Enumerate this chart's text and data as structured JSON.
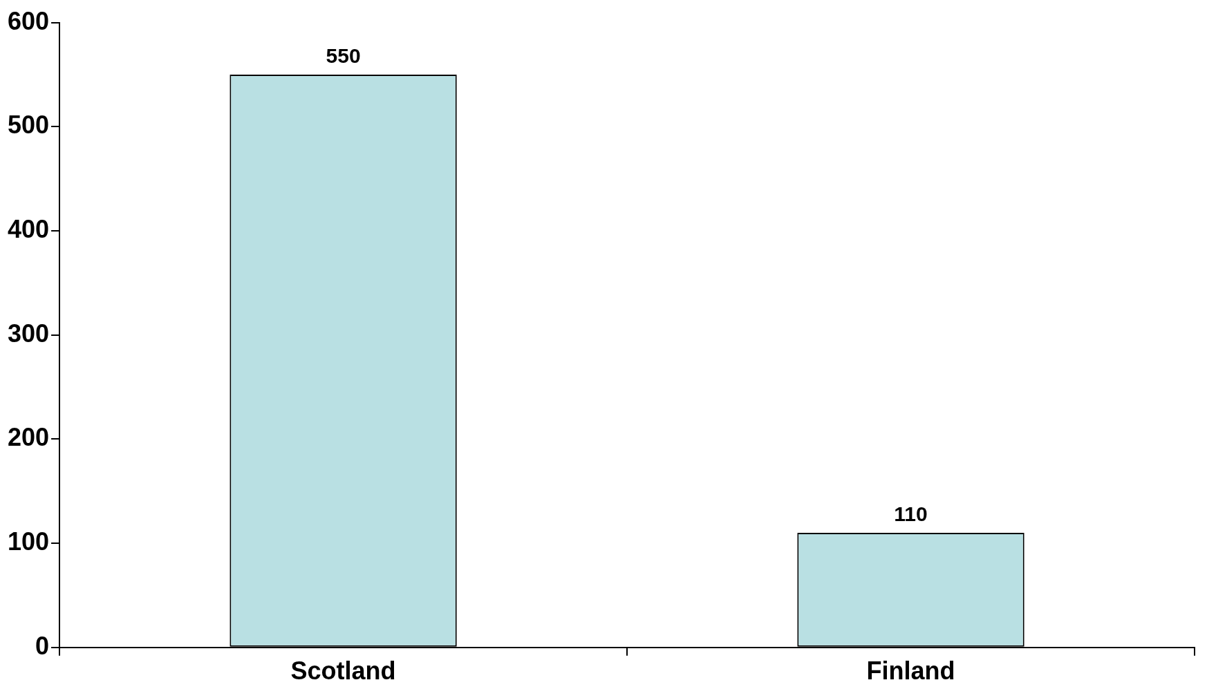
{
  "chart_data": {
    "type": "bar",
    "categories": [
      "Scotland",
      "Finland"
    ],
    "values": [
      550,
      110
    ],
    "color": "#b9e0e3",
    "ylim": [
      0,
      600
    ],
    "yticks": [
      0,
      100,
      200,
      300,
      400,
      500,
      600
    ],
    "data_labels": true
  }
}
